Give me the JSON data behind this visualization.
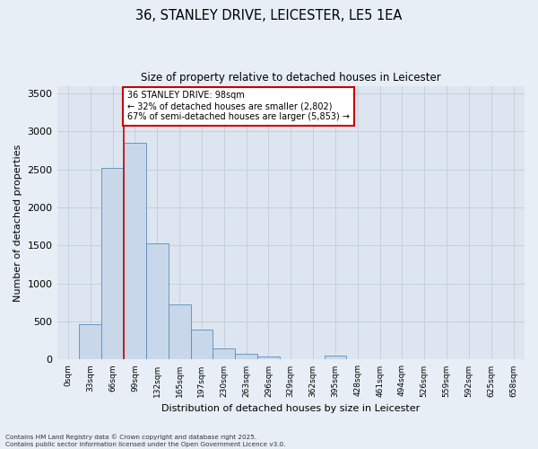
{
  "title_line1": "36, STANLEY DRIVE, LEICESTER, LE5 1EA",
  "title_line2": "Size of property relative to detached houses in Leicester",
  "xlabel": "Distribution of detached houses by size in Leicester",
  "ylabel": "Number of detached properties",
  "bar_labels": [
    "0sqm",
    "33sqm",
    "66sqm",
    "99sqm",
    "132sqm",
    "165sqm",
    "197sqm",
    "230sqm",
    "263sqm",
    "296sqm",
    "329sqm",
    "362sqm",
    "395sqm",
    "428sqm",
    "461sqm",
    "494sqm",
    "526sqm",
    "559sqm",
    "592sqm",
    "625sqm",
    "658sqm"
  ],
  "bar_values": [
    0,
    470,
    2520,
    2850,
    1530,
    720,
    390,
    150,
    80,
    45,
    0,
    0,
    50,
    0,
    0,
    0,
    0,
    0,
    0,
    0,
    0
  ],
  "bar_color": "#c8d8ea",
  "bar_edgecolor": "#5b8db8",
  "vline_x_index": 2.5,
  "annotation_text": "36 STANLEY DRIVE: 98sqm\n← 32% of detached houses are smaller (2,802)\n67% of semi-detached houses are larger (5,853) →",
  "annotation_box_facecolor": "#ffffff",
  "annotation_box_edgecolor": "#cc0000",
  "vline_color": "#cc0000",
  "ylim": [
    0,
    3600
  ],
  "yticks": [
    0,
    500,
    1000,
    1500,
    2000,
    2500,
    3000,
    3500
  ],
  "grid_color": "#c0ccd8",
  "background_color": "#dde6f0",
  "fig_facecolor": "#e8eef5",
  "footer_line1": "Contains HM Land Registry data © Crown copyright and database right 2025.",
  "footer_line2": "Contains public sector information licensed under the Open Government Licence v3.0."
}
